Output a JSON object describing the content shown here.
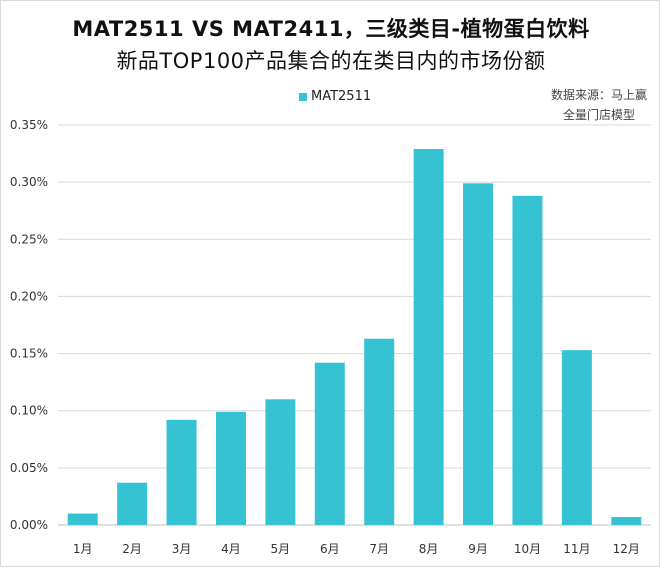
{
  "chart_data": {
    "type": "bar",
    "title": "MAT2511 VS MAT2411，三级类目-植物蛋白饮料",
    "subtitle": "新品TOP100产品集合的在类目内的市场份额",
    "categories": [
      "1月",
      "2月",
      "3月",
      "4月",
      "5月",
      "6月",
      "7月",
      "8月",
      "9月",
      "10月",
      "11月",
      "12月"
    ],
    "series": [
      {
        "name": "MAT2511",
        "color": "#35C3D3",
        "values": [
          0.01,
          0.037,
          0.092,
          0.099,
          0.11,
          0.142,
          0.163,
          0.329,
          0.299,
          0.288,
          0.153,
          0.007
        ]
      }
    ],
    "ylim": [
      0,
      0.35
    ],
    "yticks": [
      "0.00%",
      "0.05%",
      "0.10%",
      "0.15%",
      "0.20%",
      "0.25%",
      "0.30%",
      "0.35%"
    ],
    "xlabel": "",
    "ylabel": "",
    "grid": true,
    "legend": "top-center"
  },
  "source": {
    "line1": "数据来源：马上赢",
    "line2": "全量门店模型"
  }
}
